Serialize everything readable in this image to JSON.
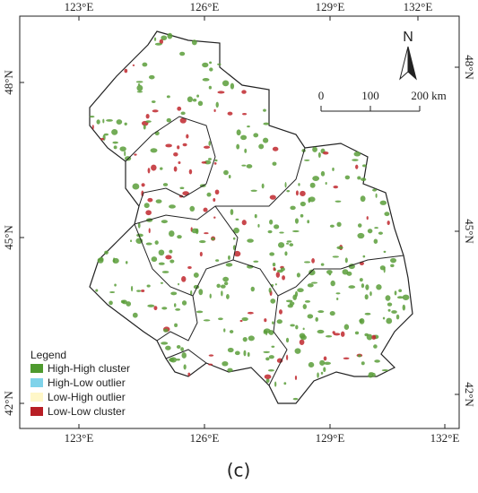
{
  "map": {
    "lon_labels_top": [
      "123°E",
      "126°E",
      "129°E",
      "132°E"
    ],
    "lon_labels_bottom": [
      "123°E",
      "126°E",
      "129°E",
      "132°E"
    ],
    "lat_labels_left": [
      "48°N",
      "45°N",
      "42°N"
    ],
    "lat_labels_right": [
      "48°N",
      "45°N",
      "42°N"
    ],
    "north": "N",
    "scale_labels": [
      "0",
      "100",
      "200 km"
    ],
    "legend": {
      "title": "Legend",
      "items": [
        "High-High cluster",
        "High-Low outlier",
        "Low-High outlier",
        "Low-Low cluster"
      ]
    }
  },
  "caption": "(c)"
}
